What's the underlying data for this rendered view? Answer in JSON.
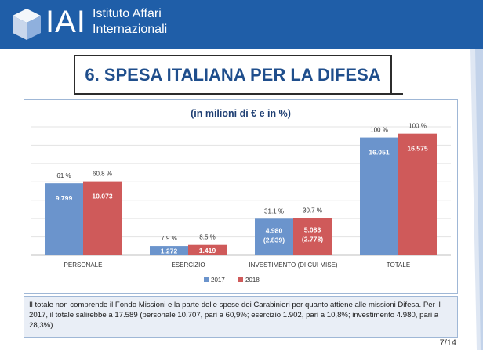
{
  "header": {
    "logo_text": "IAI",
    "org_line1": "Istituto Affari",
    "org_line2": "Internazionali"
  },
  "slide": {
    "title": "6. SPESA ITALIANA PER LA DIFESA",
    "footnote": "Il totale non comprende il Fondo Missioni e la parte delle spese dei Carabinieri per quanto attiene alle missioni Difesa. Per il 2017, il totale salirebbe a 17.589 (personale 10.707, pari a 60,9%; esercizio 1.902, pari a 10,8%; investimento 4.980, pari a 28,3%).",
    "page": "7/14"
  },
  "colors": {
    "header_bg": "#1f5ea8",
    "series_2017": "#6b94cc",
    "series_2018": "#cf5a5a",
    "title_text": "#1f4e8c"
  },
  "chart_data": {
    "type": "bar",
    "title": "(in milioni di € e in %)",
    "categories": [
      "PERSONALE",
      "ESERCIZIO",
      "INVESTIMENTO (DI CUI MISE)",
      "TOTALE"
    ],
    "series": [
      {
        "name": "2017",
        "values": [
          9799,
          1272,
          4980,
          16051
        ],
        "value_labels": [
          "9.799",
          "1.272",
          "4.980",
          "16.051"
        ],
        "sub_labels": [
          "",
          "",
          "(2.839)",
          ""
        ],
        "pct_labels": [
          "61 %",
          "7.9 %",
          "31.1 %",
          "100 %"
        ]
      },
      {
        "name": "2018",
        "values": [
          10073,
          1419,
          5083,
          16575
        ],
        "value_labels": [
          "10.073",
          "1.419",
          "5.083",
          "16.575"
        ],
        "sub_labels": [
          "",
          "",
          "(2.778)",
          ""
        ],
        "pct_labels": [
          "60.8 %",
          "8.5 %",
          "30.7 %",
          "100 %"
        ]
      }
    ],
    "ylim": [
      0,
      17500
    ],
    "grid": true,
    "legend": "bottom-center"
  }
}
